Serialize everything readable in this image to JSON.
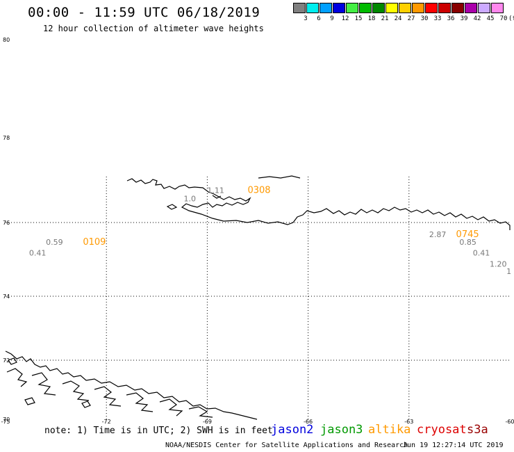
{
  "title": "00:00 - 11:59 UTC 06/18/2019",
  "subtitle": "12 hour collection of altimeter wave heights",
  "legend": {
    "unit": "(ft)",
    "scale": [
      {
        "label": "3",
        "color": "#808080"
      },
      {
        "label": "6",
        "color": "#00eeee"
      },
      {
        "label": "9",
        "color": "#00a0ff"
      },
      {
        "label": "12",
        "color": "#0000e0"
      },
      {
        "label": "15",
        "color": "#44ee44"
      },
      {
        "label": "18",
        "color": "#00bb00"
      },
      {
        "label": "21",
        "color": "#008800"
      },
      {
        "label": "24",
        "color": "#ffff00"
      },
      {
        "label": "27",
        "color": "#ffd000"
      },
      {
        "label": "30",
        "color": "#ff9900"
      },
      {
        "label": "33",
        "color": "#ff0000"
      },
      {
        "label": "36",
        "color": "#cc0000"
      },
      {
        "label": "39",
        "color": "#880000"
      },
      {
        "label": "42",
        "color": "#aa00aa"
      },
      {
        "label": "45",
        "color": "#ccaaff"
      },
      {
        "label": "70",
        "color": "#ff88ee"
      }
    ]
  },
  "axes": {
    "lon_labels": [
      "-75",
      "-72",
      "-69",
      "-66",
      "-63",
      "-60"
    ],
    "lat_labels": [
      "80",
      "78",
      "76",
      "74",
      "72",
      "70"
    ],
    "grid_lons": [
      -72,
      -69,
      -66,
      -63
    ],
    "grid_lats": [
      76,
      74,
      72
    ]
  },
  "annotations": [
    {
      "text": "0.59",
      "lon": -73.8,
      "lat": 75.4,
      "color": "#777777",
      "kind": "swh"
    },
    {
      "text": "0.41",
      "lon": -74.3,
      "lat": 75.1,
      "color": "#777777",
      "kind": "swh"
    },
    {
      "text": "0109",
      "lon": -72.7,
      "lat": 75.4,
      "color": "#ff9900",
      "kind": "time"
    },
    {
      "text": "1.11",
      "lon": -69.0,
      "lat": 76.7,
      "color": "#777777",
      "kind": "swh"
    },
    {
      "text": "1.0",
      "lon": -69.7,
      "lat": 76.5,
      "color": "#777777",
      "kind": "swh"
    },
    {
      "text": "0308",
      "lon": -67.8,
      "lat": 76.7,
      "color": "#ff9900",
      "kind": "time"
    },
    {
      "text": "2.87",
      "lon": -62.4,
      "lat": 75.6,
      "color": "#777777",
      "kind": "swh"
    },
    {
      "text": "0745",
      "lon": -61.6,
      "lat": 75.6,
      "color": "#ff9900",
      "kind": "time"
    },
    {
      "text": "0.85",
      "lon": -61.5,
      "lat": 75.4,
      "color": "#777777",
      "kind": "swh"
    },
    {
      "text": "0.41",
      "lon": -61.1,
      "lat": 75.1,
      "color": "#777777",
      "kind": "swh"
    },
    {
      "text": "1.20",
      "lon": -60.6,
      "lat": 74.8,
      "color": "#777777",
      "kind": "swh"
    },
    {
      "text": "1",
      "lon": -60.1,
      "lat": 74.6,
      "color": "#777777",
      "kind": "swh"
    }
  ],
  "note": "note: 1) Time is in UTC; 2) SWH is in feet",
  "satellites": [
    {
      "name": "jason2",
      "color": "#0000dd"
    },
    {
      "name": "jason3",
      "color": "#009900"
    },
    {
      "name": "altika",
      "color": "#ff9900"
    },
    {
      "name": "cryosat",
      "color": "#dd0000"
    },
    {
      "name": "s3a",
      "color": "#990000"
    }
  ],
  "credit": "NOAA/NESDIS Center for Satellite Applications and Research",
  "timestamp": "Jun 19 12:27:14 UTC 2019"
}
